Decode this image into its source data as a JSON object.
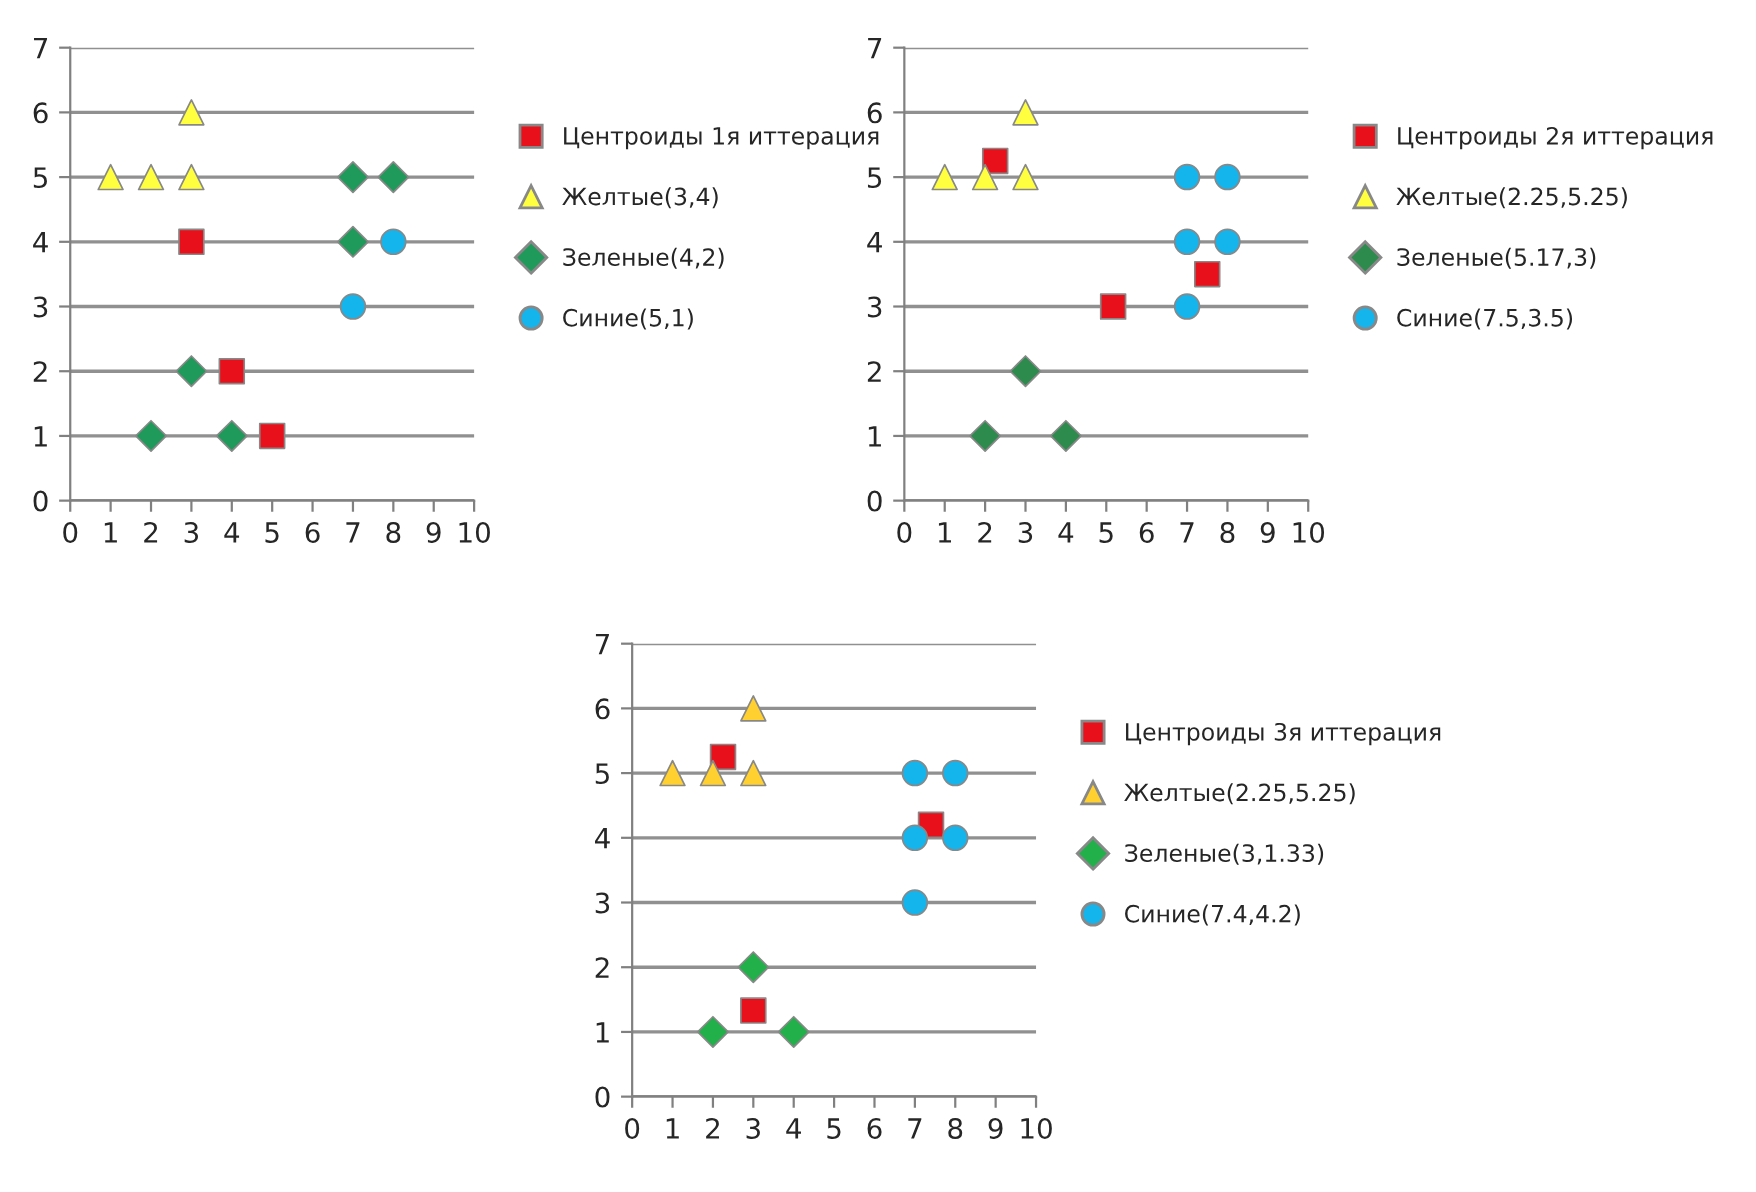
{
  "chart_data": [
    {
      "type": "scatter",
      "xlim": [
        0,
        10
      ],
      "ylim": [
        0,
        7
      ],
      "xticks": [
        0,
        1,
        2,
        3,
        4,
        5,
        6,
        7,
        8,
        9,
        10
      ],
      "yticks": [
        0,
        1,
        2,
        3,
        4,
        5,
        6,
        7
      ],
      "grid": "y",
      "legend": "right",
      "series": [
        {
          "name": "Центроиды 1я иттерация",
          "color": "#e8101a",
          "marker": "square",
          "x": [
            3,
            4,
            5
          ],
          "values": [
            4,
            2,
            1
          ]
        },
        {
          "name": "Желтые(3,4)",
          "color": "#ffff40",
          "marker": "triangle",
          "x": [
            1,
            2,
            3,
            3
          ],
          "values": [
            5,
            5,
            5,
            6
          ]
        },
        {
          "name": "Зеленые(4,2)",
          "color": "#1f9a5a",
          "marker": "diamond",
          "x": [
            7,
            8,
            7,
            3,
            2,
            4
          ],
          "values": [
            5,
            5,
            4,
            2,
            1,
            1
          ]
        },
        {
          "name": "Синие(5,1)",
          "color": "#14b4ec",
          "marker": "circle",
          "x": [
            8,
            7
          ],
          "values": [
            4,
            3
          ]
        }
      ]
    },
    {
      "type": "scatter",
      "xlim": [
        0,
        10
      ],
      "ylim": [
        0,
        7
      ],
      "xticks": [
        0,
        1,
        2,
        3,
        4,
        5,
        6,
        7,
        8,
        9,
        10
      ],
      "yticks": [
        0,
        1,
        2,
        3,
        4,
        5,
        6,
        7
      ],
      "grid": "y",
      "legend": "right",
      "series": [
        {
          "name": "Центроиды 2я иттерация",
          "color": "#e8101a",
          "marker": "square",
          "x": [
            2.25,
            5.17,
            7.5
          ],
          "values": [
            5.25,
            3,
            3.5
          ]
        },
        {
          "name": "Желтые(2.25,5.25)",
          "color": "#ffff40",
          "marker": "triangle",
          "x": [
            1,
            2,
            3,
            3
          ],
          "values": [
            5,
            5,
            5,
            6
          ]
        },
        {
          "name": "Зеленые(5.17,3)",
          "color": "#2e8b4e",
          "marker": "diamond",
          "x": [
            3,
            2,
            4
          ],
          "values": [
            2,
            1,
            1
          ]
        },
        {
          "name": "Синие(7.5,3.5)",
          "color": "#14b4ec",
          "marker": "circle",
          "x": [
            7,
            8,
            7,
            8,
            7
          ],
          "values": [
            5,
            5,
            4,
            4,
            3
          ]
        }
      ]
    },
    {
      "type": "scatter",
      "xlim": [
        0,
        10
      ],
      "ylim": [
        0,
        7
      ],
      "xticks": [
        0,
        1,
        2,
        3,
        4,
        5,
        6,
        7,
        8,
        9,
        10
      ],
      "yticks": [
        0,
        1,
        2,
        3,
        4,
        5,
        6,
        7
      ],
      "grid": "y",
      "legend": "right",
      "series": [
        {
          "name": "Центроиды 3я иттерация",
          "color": "#e8101a",
          "marker": "square",
          "x": [
            2.25,
            3,
            7.4
          ],
          "values": [
            5.25,
            1.33,
            4.2
          ]
        },
        {
          "name": "Желтые(2.25,5.25)",
          "color": "#ffd030",
          "marker": "triangle",
          "x": [
            1,
            2,
            3,
            3
          ],
          "values": [
            5,
            5,
            5,
            6
          ]
        },
        {
          "name": "Зеленые(3,1.33)",
          "color": "#22b04a",
          "marker": "diamond",
          "x": [
            3,
            2,
            4
          ],
          "values": [
            2,
            1,
            1
          ]
        },
        {
          "name": "Синие(7.4,4.2)",
          "color": "#14b4ec",
          "marker": "circle",
          "x": [
            7,
            8,
            7,
            8,
            7
          ],
          "values": [
            5,
            5,
            4,
            4,
            3
          ]
        }
      ]
    }
  ]
}
